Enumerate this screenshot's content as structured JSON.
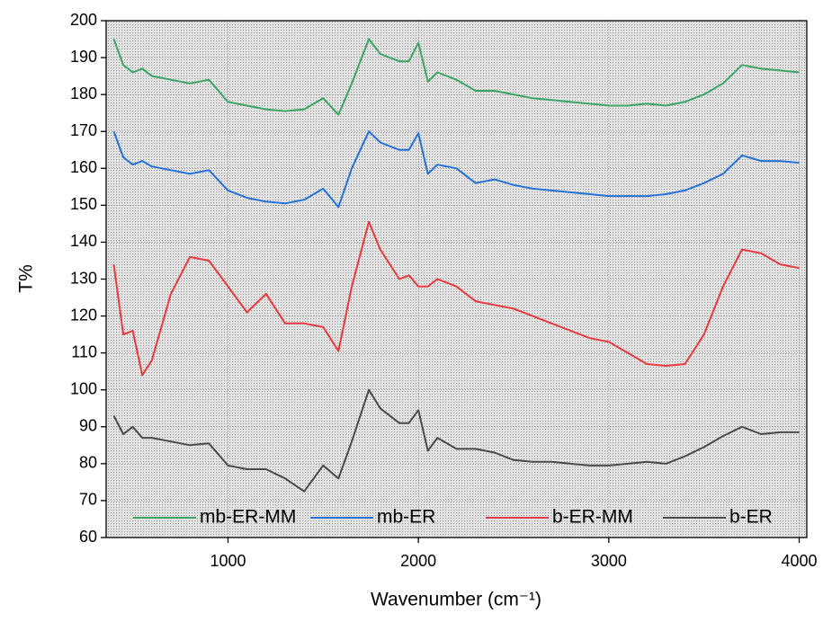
{
  "chart_data": {
    "type": "line",
    "x_label": "Wavenumber (cm⁻¹)",
    "y_label": "T%",
    "x": [
      400,
      450,
      500,
      550,
      600,
      700,
      800,
      900,
      1000,
      1100,
      1200,
      1300,
      1400,
      1500,
      1580,
      1650,
      1740,
      1800,
      1900,
      1950,
      2000,
      2050,
      2100,
      2200,
      2300,
      2400,
      2500,
      2600,
      2700,
      2800,
      2900,
      3000,
      3100,
      3200,
      3300,
      3400,
      3500,
      3600,
      3700,
      3800,
      3900,
      4000
    ],
    "series": [
      {
        "name": "mb-ER-MM",
        "color": "#3aa564",
        "values": [
          195,
          188,
          186,
          187,
          185,
          184,
          183,
          184,
          178,
          177,
          176,
          175.5,
          176,
          179,
          174.5,
          183,
          195,
          191,
          189,
          189,
          194,
          183.5,
          186,
          184,
          181,
          181,
          180,
          179,
          178.5,
          178,
          177.5,
          177,
          177,
          177.5,
          177,
          178,
          180,
          183,
          188,
          187,
          186.5,
          186
        ]
      },
      {
        "name": "mb-ER",
        "color": "#2472d8",
        "values": [
          170,
          163,
          161,
          162,
          160.5,
          159.5,
          158.5,
          159.5,
          154,
          152,
          151,
          150.5,
          151.5,
          154.5,
          149.5,
          160,
          170,
          167,
          165,
          165,
          169.5,
          158.5,
          161,
          160,
          156,
          157,
          155.5,
          154.5,
          154,
          153.5,
          153,
          152.5,
          152.5,
          152.5,
          153,
          154,
          156,
          158.5,
          163.5,
          162,
          162,
          161.5
        ]
      },
      {
        "name": "b-ER-MM",
        "color": "#e8393e",
        "values": [
          134,
          115,
          116,
          104,
          108,
          126,
          136,
          135,
          128,
          121,
          126,
          118,
          118,
          117,
          110.5,
          128,
          145.5,
          138,
          130,
          131,
          128,
          128,
          130,
          128,
          124,
          123,
          122,
          120,
          118,
          116,
          114,
          113,
          110,
          107,
          106.5,
          107,
          115,
          128,
          138,
          137,
          134,
          133
        ]
      },
      {
        "name": "b-ER",
        "color": "#4a4a4a",
        "values": [
          93,
          88,
          90,
          87,
          87,
          86,
          85,
          85.5,
          79.5,
          78.5,
          78.5,
          76,
          72.5,
          79.5,
          76,
          86,
          100,
          95,
          91,
          91,
          94.5,
          83.5,
          87,
          84,
          84,
          83,
          81,
          80.5,
          80.5,
          80,
          79.5,
          79.5,
          80,
          80.5,
          80,
          82,
          84.5,
          87.5,
          90,
          88,
          88.5,
          88.5
        ]
      }
    ],
    "xlim": [
      360,
      4040
    ],
    "xticks": [
      1000,
      2000,
      3000,
      4000
    ],
    "ylim": [
      60,
      200
    ],
    "yticks": [
      60,
      70,
      80,
      90,
      100,
      110,
      120,
      130,
      140,
      150,
      160,
      170,
      180,
      190,
      200
    ],
    "grid": true,
    "legend": "bottom"
  }
}
